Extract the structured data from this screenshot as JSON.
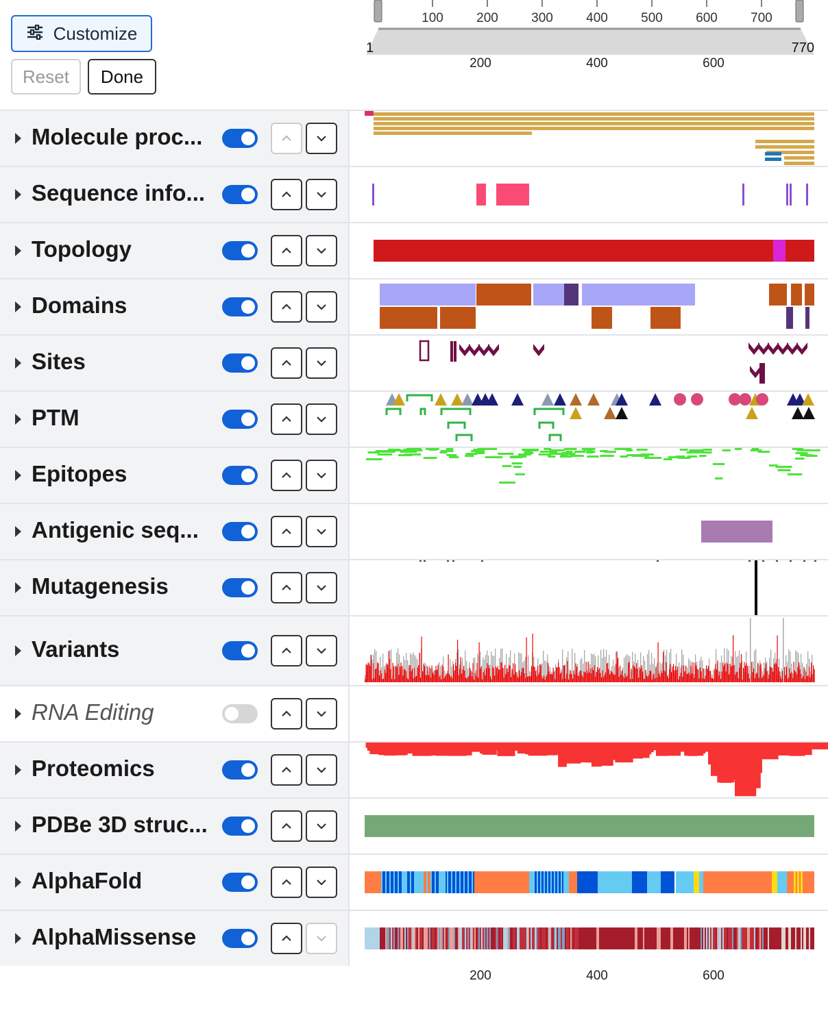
{
  "toolbar": {
    "customize_label": "Customize",
    "reset_label": "Reset",
    "done_label": "Done"
  },
  "navigation": {
    "ticks": [
      "100",
      "200",
      "300",
      "400",
      "500",
      "600",
      "700"
    ],
    "start": "1",
    "end": "770"
  },
  "axis_labels": [
    "200",
    "400",
    "600"
  ],
  "tracks": [
    {
      "label": "Molecule proc...",
      "enabled": true,
      "up_disabled": true,
      "down_disabled": false
    },
    {
      "label": "Sequence info...",
      "enabled": true,
      "up_disabled": false,
      "down_disabled": false
    },
    {
      "label": "Topology",
      "enabled": true,
      "up_disabled": false,
      "down_disabled": false
    },
    {
      "label": "Domains",
      "enabled": true,
      "up_disabled": false,
      "down_disabled": false
    },
    {
      "label": "Sites",
      "enabled": true,
      "up_disabled": false,
      "down_disabled": false
    },
    {
      "label": "PTM",
      "enabled": true,
      "up_disabled": false,
      "down_disabled": false
    },
    {
      "label": "Epitopes",
      "enabled": true,
      "up_disabled": false,
      "down_disabled": false
    },
    {
      "label": "Antigenic seq...",
      "enabled": true,
      "up_disabled": false,
      "down_disabled": false
    },
    {
      "label": "Mutagenesis",
      "enabled": true,
      "up_disabled": false,
      "down_disabled": false
    },
    {
      "label": "Variants",
      "enabled": true,
      "up_disabled": false,
      "down_disabled": false
    },
    {
      "label": "RNA Editing",
      "enabled": false,
      "up_disabled": false,
      "down_disabled": false
    },
    {
      "label": "Proteomics",
      "enabled": true,
      "up_disabled": false,
      "down_disabled": false
    },
    {
      "label": "PDBe 3D struc...",
      "enabled": true,
      "up_disabled": false,
      "down_disabled": false
    },
    {
      "label": "AlphaFold",
      "enabled": true,
      "up_disabled": false,
      "down_disabled": false
    },
    {
      "label": "AlphaMissense",
      "enabled": true,
      "up_disabled": false,
      "down_disabled": true
    }
  ],
  "colors": {
    "accent": "#1162d6",
    "chain": "#d4a84b",
    "signal": "#d6336c",
    "topology": "#d0191b",
    "transmembrane": "#d826d6",
    "domain_lavender": "#a7a6f7",
    "domain_orange": "#bf5419",
    "domain_purple": "#55357a",
    "site": "#6e1046",
    "epitope": "#4ee33a",
    "antigenic": "#a97bb1",
    "variant_red": "#f20000",
    "variant_gray": "#a8a8a8",
    "proteomics": "#f83333",
    "pdbe": "#76a877"
  }
}
